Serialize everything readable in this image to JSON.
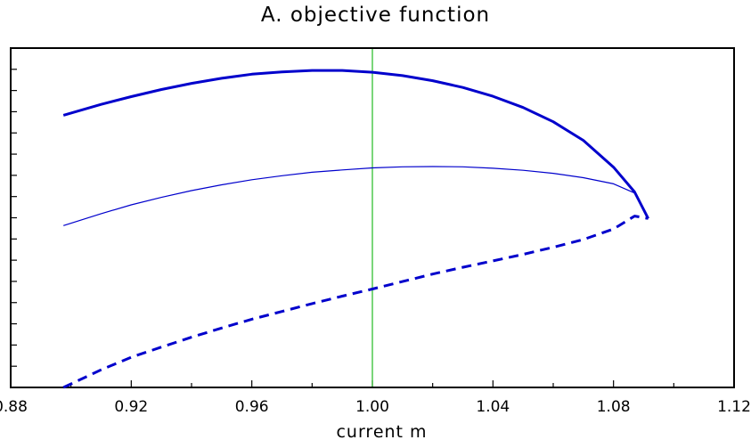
{
  "chart_data": {
    "type": "line",
    "title": "A. objective function",
    "xlabel": "current m",
    "ylabel": "",
    "xlim": [
      0.88,
      1.12
    ],
    "ylim": [
      0,
      1
    ],
    "x_ticks": [
      "0.88",
      "0.92",
      "0.96",
      "1.00",
      "1.04",
      "1.08",
      "1.12"
    ],
    "grid": false,
    "reference_line": {
      "x": 1.0,
      "color": "#22bb22"
    },
    "series": [
      {
        "style": "thick-solid",
        "color": "#0000cc",
        "points": [
          [
            0.8975,
            0.802
          ],
          [
            0.91,
            0.834
          ],
          [
            0.92,
            0.857
          ],
          [
            0.93,
            0.878
          ],
          [
            0.94,
            0.896
          ],
          [
            0.95,
            0.911
          ],
          [
            0.96,
            0.923
          ],
          [
            0.97,
            0.93
          ],
          [
            0.98,
            0.934
          ],
          [
            0.99,
            0.934
          ],
          [
            1.0,
            0.929
          ],
          [
            1.01,
            0.919
          ],
          [
            1.02,
            0.904
          ],
          [
            1.03,
            0.884
          ],
          [
            1.04,
            0.858
          ],
          [
            1.05,
            0.825
          ],
          [
            1.06,
            0.783
          ],
          [
            1.07,
            0.728
          ],
          [
            1.08,
            0.649
          ],
          [
            1.087,
            0.576
          ],
          [
            1.0915,
            0.498
          ]
        ]
      },
      {
        "style": "thin-solid",
        "color": "#0000cc",
        "points": [
          [
            0.8975,
            0.477
          ],
          [
            0.91,
            0.512
          ],
          [
            0.92,
            0.538
          ],
          [
            0.93,
            0.56
          ],
          [
            0.94,
            0.58
          ],
          [
            0.95,
            0.597
          ],
          [
            0.96,
            0.612
          ],
          [
            0.97,
            0.624
          ],
          [
            0.98,
            0.634
          ],
          [
            0.99,
            0.641
          ],
          [
            1.0,
            0.647
          ],
          [
            1.01,
            0.65
          ],
          [
            1.02,
            0.651
          ],
          [
            1.03,
            0.65
          ],
          [
            1.04,
            0.646
          ],
          [
            1.05,
            0.64
          ],
          [
            1.06,
            0.631
          ],
          [
            1.07,
            0.618
          ],
          [
            1.08,
            0.6
          ],
          [
            1.087,
            0.573
          ],
          [
            1.0915,
            0.498
          ]
        ]
      },
      {
        "style": "dashed",
        "color": "#0000cc",
        "points": [
          [
            0.8975,
            0.0
          ],
          [
            0.91,
            0.052
          ],
          [
            0.92,
            0.089
          ],
          [
            0.93,
            0.119
          ],
          [
            0.94,
            0.148
          ],
          [
            0.95,
            0.175
          ],
          [
            0.96,
            0.201
          ],
          [
            0.97,
            0.224
          ],
          [
            0.98,
            0.247
          ],
          [
            0.99,
            0.269
          ],
          [
            1.0,
            0.29
          ],
          [
            1.01,
            0.312
          ],
          [
            1.02,
            0.334
          ],
          [
            1.03,
            0.354
          ],
          [
            1.04,
            0.373
          ],
          [
            1.05,
            0.392
          ],
          [
            1.06,
            0.413
          ],
          [
            1.07,
            0.436
          ],
          [
            1.08,
            0.467
          ],
          [
            1.087,
            0.505
          ],
          [
            1.0915,
            0.498
          ]
        ]
      }
    ]
  }
}
